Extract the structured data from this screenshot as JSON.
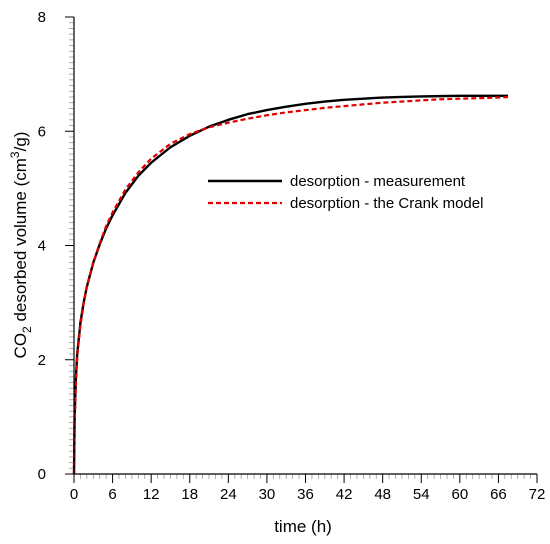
{
  "chart_data": {
    "type": "line",
    "xlabel": "time (h)",
    "ylabel": {
      "prefix": "CO",
      "sub": "2",
      "middle": " desorbed volume (cm",
      "sup": "3",
      "suffix": "/g)"
    },
    "xlim": [
      0,
      72
    ],
    "ylim": [
      0,
      8
    ],
    "x_ticks": [
      0,
      6,
      12,
      18,
      24,
      30,
      36,
      42,
      48,
      54,
      60,
      66,
      72
    ],
    "y_ticks": [
      0,
      2,
      4,
      6,
      8
    ],
    "grid": false,
    "legend_position": "center-right",
    "series": [
      {
        "name": "desorption - measurement",
        "style": "solid",
        "color": "#000000",
        "x": [
          0,
          0.1,
          0.3,
          0.5,
          1,
          1.5,
          2,
          3,
          4,
          5,
          6,
          8,
          10,
          12,
          15,
          18,
          21,
          24,
          27,
          30,
          33,
          36,
          39,
          42,
          45,
          48,
          51,
          54,
          57,
          60,
          63,
          66,
          67.5
        ],
        "y": [
          0,
          1.0,
          1.7,
          2.1,
          2.65,
          3.0,
          3.28,
          3.7,
          4.02,
          4.3,
          4.53,
          4.92,
          5.22,
          5.45,
          5.72,
          5.92,
          6.08,
          6.2,
          6.3,
          6.37,
          6.43,
          6.48,
          6.52,
          6.55,
          6.57,
          6.59,
          6.6,
          6.61,
          6.615,
          6.62,
          6.62,
          6.62,
          6.62
        ]
      },
      {
        "name": "desorption - the Crank model",
        "style": "dashed",
        "color": "#e00000",
        "x": [
          0,
          0.1,
          0.3,
          0.5,
          1,
          1.5,
          2,
          3,
          4,
          5,
          6,
          8,
          10,
          12,
          15,
          18,
          21,
          24,
          27,
          30,
          33,
          36,
          39,
          42,
          45,
          48,
          51,
          54,
          57,
          60,
          63,
          66,
          67.5
        ],
        "y": [
          0,
          0.9,
          1.6,
          2.05,
          2.6,
          2.98,
          3.27,
          3.7,
          4.04,
          4.34,
          4.58,
          4.98,
          5.28,
          5.52,
          5.78,
          5.95,
          6.07,
          6.15,
          6.22,
          6.28,
          6.33,
          6.37,
          6.41,
          6.44,
          6.47,
          6.5,
          6.52,
          6.54,
          6.56,
          6.57,
          6.58,
          6.59,
          6.6
        ]
      }
    ]
  }
}
